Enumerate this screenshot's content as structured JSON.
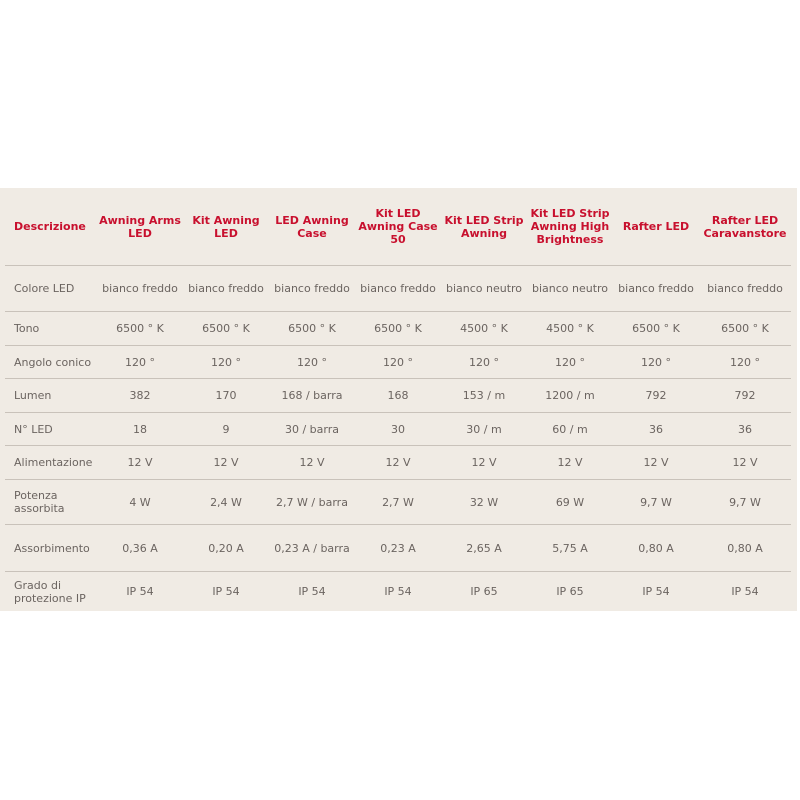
{
  "headers": [
    "Descrizione",
    "Awning Arms LED",
    "Kit Awning LED",
    "LED Awning Case",
    "Kit LED Awning Case 50",
    "Kit LED Strip Awning",
    "Kit LED Strip Awning High Brightness",
    "Rafter LED",
    "Rafter LED Caravanstore"
  ],
  "rows": [
    {
      "label": "Colore LED",
      "values": [
        "bianco freddo",
        "bianco freddo",
        "bianco freddo",
        "bianco freddo",
        "bianco neutro",
        "bianco neutro",
        "bianco freddo",
        "bianco freddo"
      ]
    },
    {
      "label": "Tono",
      "values": [
        "6500 ° K",
        "6500 ° K",
        "6500 ° K",
        "6500 ° K",
        "4500 ° K",
        "4500 ° K",
        "6500 ° K",
        "6500 ° K"
      ]
    },
    {
      "label": "Angolo conico",
      "values": [
        "120 °",
        "120 °",
        "120 °",
        "120 °",
        "120 °",
        "120 °",
        "120 °",
        "120 °"
      ]
    },
    {
      "label": "Lumen",
      "values": [
        "382",
        "170",
        "168 / barra",
        "168",
        "153 / m",
        "1200 / m",
        "792",
        "792"
      ]
    },
    {
      "label": "N° LED",
      "values": [
        "18",
        "9",
        "30 / barra",
        "30",
        "30 / m",
        "60 / m",
        "36",
        "36"
      ]
    },
    {
      "label": "Alimentazione",
      "values": [
        "12 V",
        "12 V",
        "12 V",
        "12 V",
        "12 V",
        "12 V",
        "12 V",
        "12 V"
      ]
    },
    {
      "label": "Potenza assorbita",
      "values": [
        "4 W",
        "2,4 W",
        "2,7 W / barra",
        "2,7 W",
        "32 W",
        "69 W",
        "9,7 W",
        "9,7 W"
      ]
    },
    {
      "label": "Assorbimento",
      "values": [
        "0,36 A",
        "0,20 A",
        "0,23 A / barra",
        "0,23 A",
        "2,65 A",
        "5,75 A",
        "0,80 A",
        "0,80 A"
      ]
    },
    {
      "label": "Grado di protezione IP",
      "values": [
        "IP 54",
        "IP 54",
        "IP 54",
        "IP 54",
        "IP 65",
        "IP 65",
        "IP 54",
        "IP 54"
      ]
    }
  ],
  "colors": {
    "header": "#c8102e",
    "background": "#f0ebe4",
    "text": "#6b6460"
  }
}
